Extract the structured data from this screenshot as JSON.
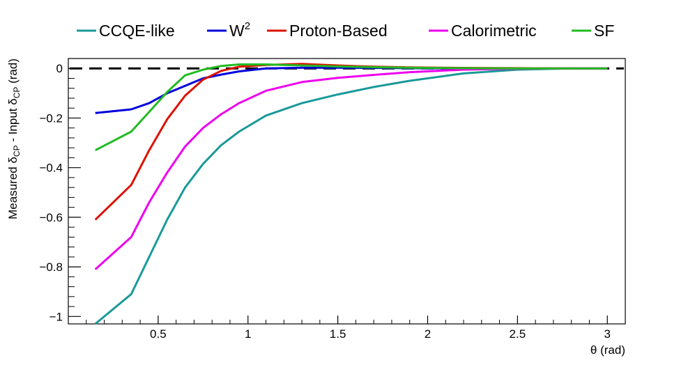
{
  "chart_data": {
    "type": "line",
    "title": "",
    "xlabel": "θ (rad)",
    "ylabel_parts": {
      "p1": "Measured δ",
      "s1": "CP",
      "p2": " - Input δ",
      "s2": "CP",
      "p3": " (rad)"
    },
    "xlim": [
      0.0,
      3.1
    ],
    "ylim": [
      -1.03,
      0.04
    ],
    "x_ticks": [
      0.5,
      1,
      1.5,
      2,
      2.5,
      3
    ],
    "x_tick_labels": [
      "0.5",
      "1",
      "1.5",
      "2",
      "2.5",
      "3"
    ],
    "y_ticks": [
      -1,
      -0.8,
      -0.6,
      -0.4,
      -0.2,
      0
    ],
    "y_tick_labels": [
      "−1",
      "−0.8",
      "−0.6",
      "−0.4",
      "−0.2",
      "0"
    ],
    "reference_line": {
      "y": 0,
      "style": "dashed",
      "color": "#000000"
    },
    "legend_position": "top",
    "series": [
      {
        "name": "CCQE-like",
        "color": "#1a9999",
        "x": [
          0.15,
          0.35,
          0.45,
          0.55,
          0.65,
          0.75,
          0.85,
          0.95,
          1.1,
          1.3,
          1.5,
          1.7,
          1.9,
          2.2,
          2.5,
          2.8,
          3.0
        ],
        "y": [
          -1.03,
          -0.91,
          -0.76,
          -0.61,
          -0.48,
          -0.385,
          -0.31,
          -0.255,
          -0.19,
          -0.14,
          -0.105,
          -0.075,
          -0.05,
          -0.02,
          -0.005,
          0.0,
          0.0
        ]
      },
      {
        "name": "W",
        "name_sup": "2",
        "color": "#0000dd",
        "x": [
          0.15,
          0.35,
          0.45,
          0.55,
          0.65,
          0.75,
          0.85,
          0.95,
          1.1,
          1.3,
          1.5,
          1.7,
          1.9,
          2.2,
          2.5,
          2.8,
          3.0
        ],
        "y": [
          -0.18,
          -0.165,
          -0.14,
          -0.1,
          -0.07,
          -0.04,
          -0.025,
          -0.012,
          0.0,
          0.003,
          0.003,
          0.002,
          0.001,
          0.0,
          0.0,
          0.0,
          0.0
        ]
      },
      {
        "name": "Proton-Based",
        "color": "#dd1100",
        "x": [
          0.15,
          0.35,
          0.45,
          0.55,
          0.65,
          0.75,
          0.85,
          0.95,
          1.1,
          1.3,
          1.5,
          1.7,
          1.9,
          2.2,
          2.5,
          2.8,
          3.0
        ],
        "y": [
          -0.61,
          -0.47,
          -0.33,
          -0.205,
          -0.11,
          -0.045,
          -0.01,
          0.007,
          0.014,
          0.018,
          0.012,
          0.007,
          0.004,
          0.002,
          0.001,
          0.0,
          0.0
        ]
      },
      {
        "name": "Calorimetric",
        "color": "#ee00ee",
        "x": [
          0.15,
          0.35,
          0.45,
          0.55,
          0.65,
          0.75,
          0.85,
          0.95,
          1.1,
          1.3,
          1.5,
          1.7,
          1.9,
          2.2,
          2.5,
          2.8,
          3.0
        ],
        "y": [
          -0.81,
          -0.68,
          -0.54,
          -0.42,
          -0.315,
          -0.24,
          -0.185,
          -0.14,
          -0.09,
          -0.055,
          -0.038,
          -0.026,
          -0.015,
          -0.005,
          -0.001,
          0.0,
          0.0
        ]
      },
      {
        "name": "SF",
        "color": "#22bb22",
        "x": [
          0.15,
          0.35,
          0.45,
          0.55,
          0.65,
          0.75,
          0.85,
          0.95,
          1.1,
          1.3,
          1.5,
          1.7,
          1.9,
          2.2,
          2.5,
          2.8,
          3.0
        ],
        "y": [
          -0.33,
          -0.255,
          -0.175,
          -0.095,
          -0.028,
          -0.005,
          0.01,
          0.016,
          0.016,
          0.012,
          0.008,
          0.005,
          0.003,
          0.001,
          0.0,
          0.0,
          0.0
        ]
      }
    ]
  }
}
